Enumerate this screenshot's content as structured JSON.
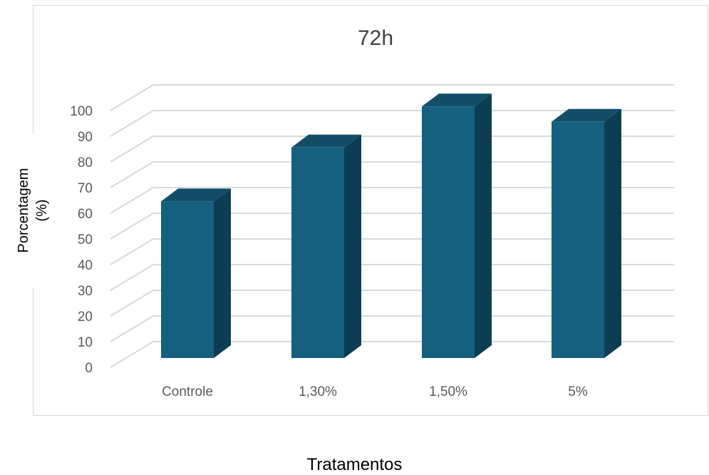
{
  "chart_data": {
    "type": "bar",
    "title": "72h",
    "xlabel": "Tratamentos",
    "ylabel": "Porcentagem\n(%)",
    "categories": [
      "Controle",
      "1,30%",
      "1,50%",
      "5%"
    ],
    "values": [
      61,
      82,
      98,
      92
    ],
    "ylim": [
      0,
      100
    ],
    "yticks": [
      "0",
      "10",
      "20",
      "30",
      "40",
      "50",
      "60",
      "70",
      "80",
      "90",
      "100"
    ],
    "grid": true,
    "legend": "none",
    "colors": {
      "front": "#16607f",
      "side": "#0c3d52",
      "top": "#124e68",
      "grid": "#d9d9d9"
    }
  }
}
